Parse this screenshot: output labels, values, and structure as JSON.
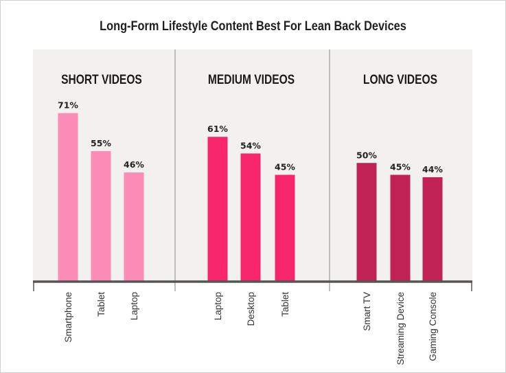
{
  "chart_data": {
    "type": "bar",
    "title": "Long-Form Lifestyle Content Best For Lean Back Devices",
    "ylim": [
      0,
      80
    ],
    "grid": false,
    "legend": "none",
    "value_suffix": "%",
    "groups": [
      {
        "name": "SHORT VIDEOS",
        "color": "#fc8bb5",
        "categories": [
          "Smartphone",
          "Tablet",
          "Laptop"
        ],
        "values": [
          71,
          55,
          46
        ]
      },
      {
        "name": "MEDIUM VIDEOS",
        "color": "#f7256b",
        "categories": [
          "Laptop",
          "Desktop",
          "Tablet"
        ],
        "values": [
          61,
          54,
          45
        ]
      },
      {
        "name": "LONG VIDEOS",
        "color": "#c12255",
        "categories": [
          "Smart TV",
          "Streaming Device",
          "Gaming Console"
        ],
        "values": [
          50,
          45,
          44
        ]
      }
    ]
  },
  "colors": {
    "panel_background": "#f3f1ef",
    "axis": "#555555",
    "divider": "#aaaaaa"
  }
}
